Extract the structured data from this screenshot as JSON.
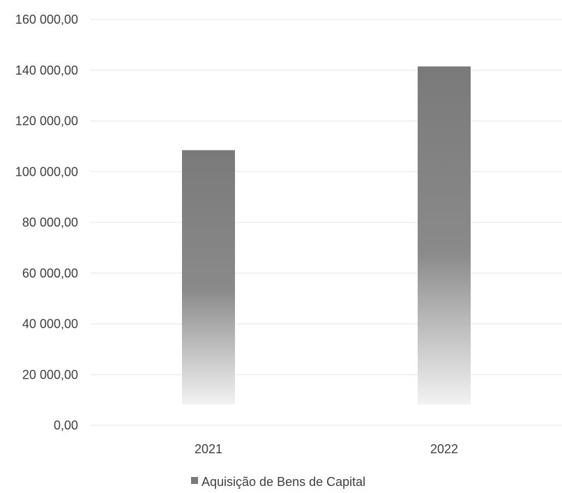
{
  "chart_data": {
    "type": "bar",
    "categories": [
      "2021",
      "2022"
    ],
    "series": [
      {
        "name": "Aquisição de Bens de Capital",
        "values": [
          108500,
          141500
        ]
      }
    ],
    "ylim": [
      0,
      160000
    ],
    "yticks": [
      0,
      20000,
      40000,
      60000,
      80000,
      100000,
      120000,
      140000,
      160000
    ],
    "ytick_labels": [
      "0,00",
      "20 000,00",
      "40 000,00",
      "60 000,00",
      "80 000,00",
      "100 000,00",
      "120 000,00",
      "140 000,00",
      "160 000,00"
    ],
    "grid": true,
    "legend": "bottom",
    "bar_color": "#7a7a7a",
    "bar_fade_color": "#f2f2f2"
  }
}
